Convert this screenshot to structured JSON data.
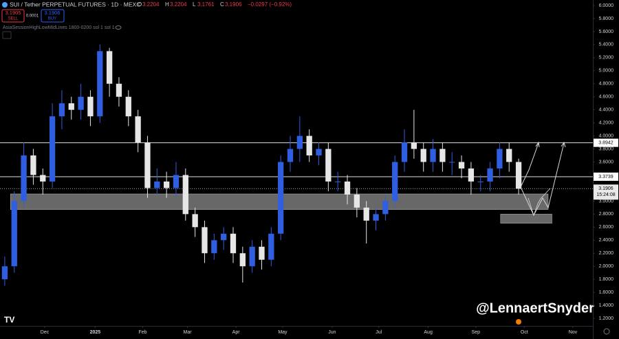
{
  "chart_data": {
    "type": "candlestick",
    "header": {
      "symbol": "SUI / Tether PERPETUAL FUTURES · 1D · MEXC",
      "ohlc": [
        {
          "label": "O",
          "value": 3.2204
        },
        {
          "label": "H",
          "value": 3.2204
        },
        {
          "label": "L",
          "value": 3.1761
        },
        {
          "label": "C",
          "value": 3.1906
        }
      ],
      "change": "−0.0297 (−0.92%)",
      "sell": {
        "price": 3.1905,
        "label": "SELL"
      },
      "spread": 0.0001,
      "buy": {
        "price": 3.1906,
        "label": "BUY"
      },
      "indicator": "AsiaSessionHighLowMidLines 1800-0200 sol 1 sol 1"
    },
    "watermark": "@LennaertSnyder",
    "up_color": "#2f5fe0",
    "down_color": "#e6e6e6",
    "candles": {
      "open": [
        1.8,
        2.0,
        3.0,
        3.7,
        3.4,
        3.3,
        4.3,
        4.5,
        4.4,
        4.6,
        4.3,
        5.3,
        4.8,
        4.6,
        4.3,
        3.9,
        3.2,
        3.3,
        3.2,
        3.4,
        2.8,
        2.6,
        2.2,
        2.4,
        2.5,
        2.2,
        2.0,
        2.3,
        2.1,
        2.5,
        3.6,
        3.8,
        4.0,
        3.7,
        3.8,
        3.3,
        3.3,
        3.1,
        2.9,
        2.7,
        2.8,
        3.0,
        3.6,
        3.9,
        3.8,
        3.6,
        3.8,
        3.6,
        3.6,
        3.5,
        3.3,
        3.3,
        3.5,
        3.8,
        3.6
      ],
      "high": [
        2.15,
        3.15,
        3.9,
        3.8,
        3.5,
        4.5,
        4.7,
        4.6,
        4.8,
        4.7,
        5.4,
        5.35,
        4.9,
        4.7,
        4.4,
        4.0,
        3.5,
        3.45,
        3.6,
        3.5,
        2.9,
        2.7,
        2.5,
        2.6,
        2.6,
        2.3,
        2.4,
        2.4,
        2.6,
        3.7,
        4.0,
        4.3,
        4.1,
        3.9,
        3.9,
        3.45,
        3.4,
        3.2,
        3.0,
        2.9,
        3.1,
        3.7,
        4.1,
        4.4,
        3.9,
        3.95,
        3.9,
        3.75,
        3.7,
        3.6,
        3.4,
        3.6,
        3.9,
        3.9,
        3.65
      ],
      "low": [
        1.7,
        1.9,
        2.9,
        3.25,
        3.1,
        3.2,
        4.1,
        4.25,
        4.25,
        4.15,
        4.2,
        4.6,
        4.45,
        4.15,
        3.75,
        3.05,
        3.1,
        3.05,
        3.05,
        2.7,
        2.45,
        2.05,
        2.1,
        2.25,
        2.05,
        1.75,
        1.9,
        1.95,
        2.0,
        2.4,
        3.45,
        3.6,
        3.6,
        3.55,
        3.15,
        3.15,
        2.95,
        2.75,
        2.35,
        2.55,
        2.7,
        2.9,
        3.45,
        3.65,
        3.45,
        3.45,
        3.45,
        3.4,
        3.35,
        3.1,
        3.15,
        3.15,
        3.35,
        3.45,
        3.1
      ],
      "close": [
        2.0,
        3.0,
        3.7,
        3.4,
        3.3,
        4.3,
        4.5,
        4.4,
        4.6,
        4.3,
        5.3,
        4.8,
        4.6,
        4.3,
        3.9,
        3.2,
        3.3,
        3.2,
        3.4,
        2.8,
        2.6,
        2.2,
        2.4,
        2.5,
        2.2,
        2.0,
        2.3,
        2.1,
        2.5,
        3.6,
        3.8,
        4.0,
        3.7,
        3.8,
        3.3,
        3.3,
        3.1,
        2.9,
        2.7,
        2.8,
        3.0,
        3.6,
        3.9,
        3.8,
        3.6,
        3.8,
        3.6,
        3.6,
        3.5,
        3.3,
        3.3,
        3.5,
        3.8,
        3.6,
        3.19
      ]
    },
    "xlim": [
      -0.5,
      61.8
    ],
    "xticks": [
      {
        "value": 4.2,
        "label": "Dec"
      },
      {
        "value": 9.5,
        "label": "2025"
      },
      {
        "value": 14.5,
        "label": "Feb"
      },
      {
        "value": 19.2,
        "label": "Mar"
      },
      {
        "value": 24.3,
        "label": "Apr"
      },
      {
        "value": 29.2,
        "label": "May"
      },
      {
        "value": 34.4,
        "label": "Jun"
      },
      {
        "value": 39.3,
        "label": "Jul"
      },
      {
        "value": 44.5,
        "label": "Aug"
      },
      {
        "value": 49.5,
        "label": "Sep"
      },
      {
        "value": 54.6,
        "label": "Oct"
      },
      {
        "value": 59.7,
        "label": "Nov"
      }
    ],
    "ylim": [
      1.0847,
      6.0844
    ],
    "yticks": [
      {
        "value": 6.0,
        "label": "6.0000"
      },
      {
        "value": 5.8,
        "label": "5.8000"
      },
      {
        "value": 5.6,
        "label": "5.6000"
      },
      {
        "value": 5.4,
        "label": "5.4000"
      },
      {
        "value": 5.2,
        "label": "5.2000"
      },
      {
        "value": 5.0,
        "label": "5.0000"
      },
      {
        "value": 4.8,
        "label": "4.8000"
      },
      {
        "value": 4.6,
        "label": "4.6000"
      },
      {
        "value": 4.4,
        "label": "4.4000"
      },
      {
        "value": 4.2,
        "label": "4.2000"
      },
      {
        "value": 4.0,
        "label": "4.0000"
      },
      {
        "value": 3.8,
        "label": "3.8000"
      },
      {
        "value": 3.6,
        "label": "3.6000"
      },
      {
        "value": 3.0,
        "label": "3.0000"
      },
      {
        "value": 2.8,
        "label": "2.8000"
      },
      {
        "value": 2.6,
        "label": "2.6000"
      },
      {
        "value": 2.4,
        "label": "2.4000"
      },
      {
        "value": 2.2,
        "label": "2.2000"
      },
      {
        "value": 2.0,
        "label": "2.0000"
      },
      {
        "value": 1.8,
        "label": "1.8000"
      },
      {
        "value": 1.6,
        "label": "1.6000"
      },
      {
        "value": 1.4,
        "label": "1.4000"
      },
      {
        "value": 1.2,
        "label": "1.2000"
      }
    ],
    "levels": [
      {
        "value": 3.8942,
        "label": "3.8942"
      },
      {
        "value": 3.3739,
        "label": "3.3739"
      }
    ],
    "last_price": {
      "value": 3.1906,
      "label": "3.1906",
      "countdown": "15:24:08"
    },
    "zones": [
      {
        "y": [
          2.87,
          3.11
        ],
        "x": [
          0.6,
          57.1
        ]
      },
      {
        "y": [
          2.66,
          2.8
        ],
        "x": [
          52.1,
          57.5
        ]
      }
    ]
  }
}
